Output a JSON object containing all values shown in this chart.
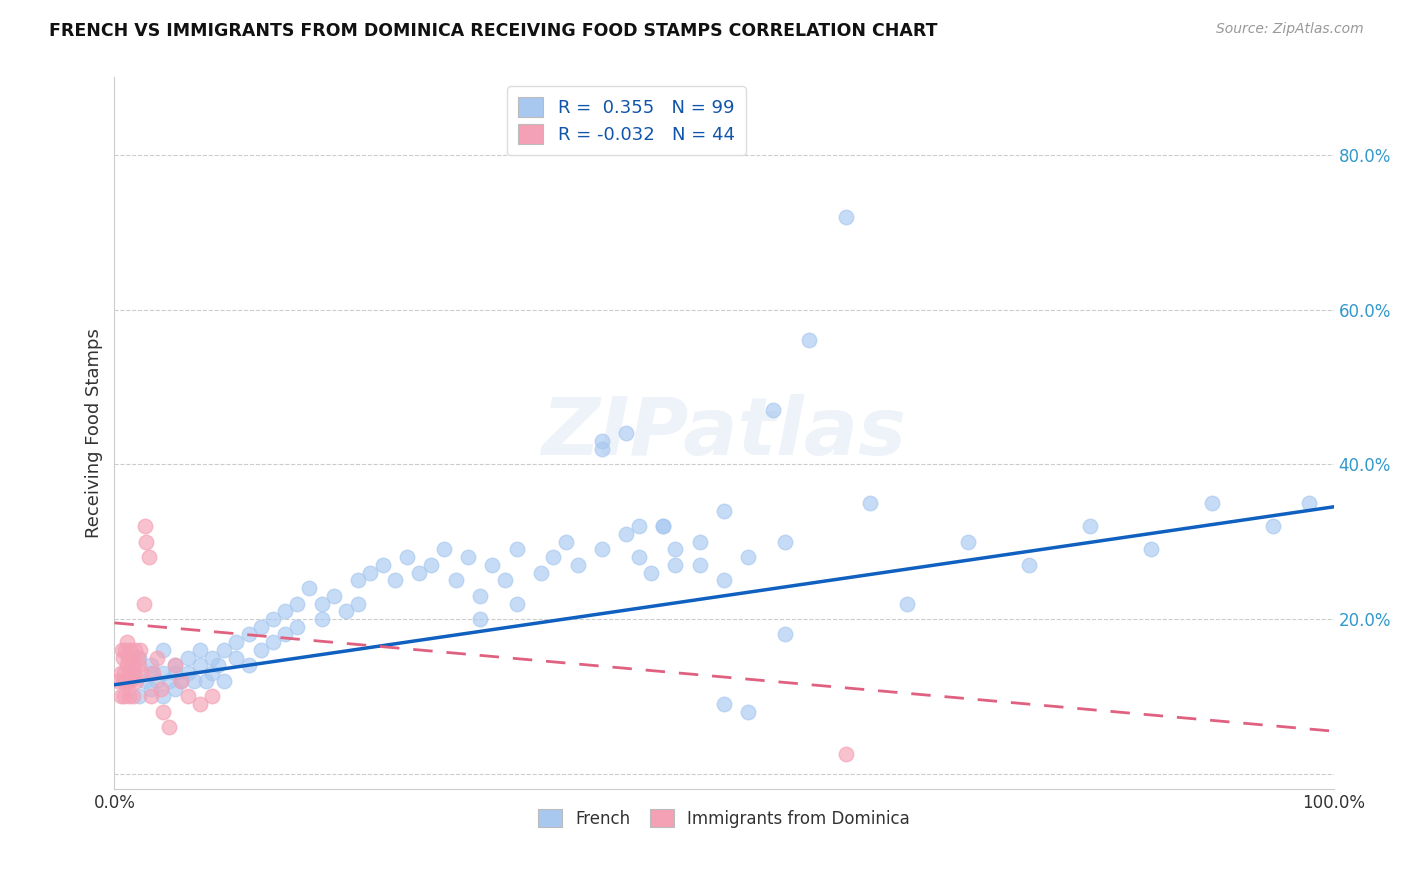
{
  "title": "FRENCH VS IMMIGRANTS FROM DOMINICA RECEIVING FOOD STAMPS CORRELATION CHART",
  "source": "Source: ZipAtlas.com",
  "ylabel": "Receiving Food Stamps",
  "y_tick_positions": [
    0.0,
    0.2,
    0.4,
    0.6,
    0.8
  ],
  "y_tick_labels": [
    "",
    "20.0%",
    "40.0%",
    "60.0%",
    "80.0%"
  ],
  "x_tick_positions": [
    0.0,
    0.2,
    0.4,
    0.6,
    0.8,
    1.0
  ],
  "x_tick_labels": [
    "0.0%",
    "",
    "",
    "",
    "",
    "100.0%"
  ],
  "color_blue": "#A8C8F0",
  "color_pink": "#F4A0B5",
  "line_blue": "#1060C0",
  "line_pink": "#E06080",
  "background": "#FFFFFF",
  "watermark": "ZIPatlas",
  "legend_text_blue": "R =  0.355   N = 99",
  "legend_text_pink": "R = -0.032   N = 44",
  "blue_line_x0": 0.0,
  "blue_line_y0": 0.115,
  "blue_line_x1": 1.0,
  "blue_line_y1": 0.345,
  "pink_line_x0": 0.0,
  "pink_line_y0": 0.195,
  "pink_line_x1": 1.0,
  "pink_line_y1": 0.055,
  "blue_x": [
    0.01,
    0.015,
    0.02,
    0.02,
    0.025,
    0.03,
    0.03,
    0.03,
    0.035,
    0.04,
    0.04,
    0.04,
    0.045,
    0.05,
    0.05,
    0.05,
    0.055,
    0.06,
    0.06,
    0.065,
    0.07,
    0.07,
    0.075,
    0.08,
    0.08,
    0.085,
    0.09,
    0.09,
    0.1,
    0.1,
    0.11,
    0.11,
    0.12,
    0.12,
    0.13,
    0.13,
    0.14,
    0.14,
    0.15,
    0.15,
    0.16,
    0.17,
    0.17,
    0.18,
    0.19,
    0.2,
    0.2,
    0.21,
    0.22,
    0.23,
    0.24,
    0.25,
    0.26,
    0.27,
    0.28,
    0.29,
    0.3,
    0.31,
    0.32,
    0.33,
    0.35,
    0.36,
    0.37,
    0.38,
    0.4,
    0.42,
    0.43,
    0.44,
    0.45,
    0.46,
    0.48,
    0.5,
    0.5,
    0.52,
    0.54,
    0.55,
    0.57,
    0.6,
    0.62,
    0.65,
    0.7,
    0.75,
    0.8,
    0.85,
    0.9,
    0.95,
    0.98,
    0.3,
    0.33,
    0.4,
    0.45,
    0.48,
    0.5,
    0.52,
    0.55,
    0.4,
    0.42,
    0.43,
    0.46
  ],
  "blue_y": [
    0.12,
    0.13,
    0.1,
    0.15,
    0.12,
    0.11,
    0.14,
    0.13,
    0.12,
    0.13,
    0.1,
    0.16,
    0.12,
    0.11,
    0.14,
    0.13,
    0.12,
    0.13,
    0.15,
    0.12,
    0.14,
    0.16,
    0.12,
    0.15,
    0.13,
    0.14,
    0.16,
    0.12,
    0.17,
    0.15,
    0.18,
    0.14,
    0.19,
    0.16,
    0.2,
    0.17,
    0.21,
    0.18,
    0.22,
    0.19,
    0.24,
    0.22,
    0.2,
    0.23,
    0.21,
    0.25,
    0.22,
    0.26,
    0.27,
    0.25,
    0.28,
    0.26,
    0.27,
    0.29,
    0.25,
    0.28,
    0.23,
    0.27,
    0.25,
    0.29,
    0.26,
    0.28,
    0.3,
    0.27,
    0.29,
    0.31,
    0.28,
    0.26,
    0.32,
    0.29,
    0.27,
    0.34,
    0.25,
    0.28,
    0.47,
    0.3,
    0.56,
    0.72,
    0.35,
    0.22,
    0.3,
    0.27,
    0.32,
    0.29,
    0.35,
    0.32,
    0.35,
    0.2,
    0.22,
    0.43,
    0.32,
    0.3,
    0.09,
    0.08,
    0.18,
    0.42,
    0.44,
    0.32,
    0.27
  ],
  "pink_x": [
    0.003,
    0.005,
    0.005,
    0.006,
    0.007,
    0.007,
    0.008,
    0.008,
    0.009,
    0.009,
    0.01,
    0.01,
    0.011,
    0.011,
    0.012,
    0.012,
    0.013,
    0.013,
    0.014,
    0.015,
    0.015,
    0.016,
    0.017,
    0.018,
    0.019,
    0.02,
    0.021,
    0.022,
    0.024,
    0.025,
    0.026,
    0.028,
    0.03,
    0.032,
    0.035,
    0.038,
    0.04,
    0.045,
    0.05,
    0.055,
    0.06,
    0.07,
    0.08,
    0.6
  ],
  "pink_y": [
    0.12,
    0.1,
    0.13,
    0.16,
    0.12,
    0.15,
    0.1,
    0.13,
    0.16,
    0.12,
    0.14,
    0.17,
    0.12,
    0.15,
    0.1,
    0.13,
    0.16,
    0.12,
    0.15,
    0.1,
    0.14,
    0.13,
    0.16,
    0.12,
    0.15,
    0.14,
    0.16,
    0.13,
    0.22,
    0.32,
    0.3,
    0.28,
    0.1,
    0.13,
    0.15,
    0.11,
    0.08,
    0.06,
    0.14,
    0.12,
    0.1,
    0.09,
    0.1,
    0.025
  ],
  "xlim": [
    0.0,
    1.0
  ],
  "ylim": [
    -0.02,
    0.9
  ]
}
